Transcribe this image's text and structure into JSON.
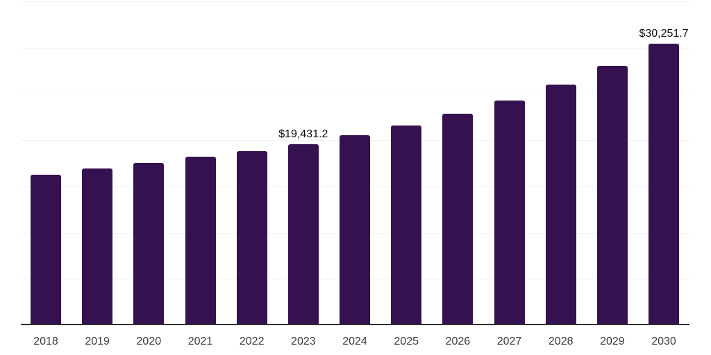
{
  "chart_data": {
    "type": "bar",
    "title": "",
    "xlabel": "",
    "ylabel": "",
    "categories": [
      "2018",
      "2019",
      "2020",
      "2021",
      "2022",
      "2023",
      "2024",
      "2025",
      "2026",
      "2027",
      "2028",
      "2029",
      "2030"
    ],
    "values": [
      16100,
      16790,
      17390,
      18060,
      18660,
      19431.2,
      20390,
      21470,
      22700,
      24140,
      25890,
      27880,
      30251.7
    ],
    "data_labels": [
      "",
      "",
      "",
      "",
      "",
      "$19,431.2",
      "",
      "",
      "",
      "",
      "",
      "",
      "$30,251.7"
    ],
    "ylim": [
      0,
      35000
    ],
    "gridline_step": 5000,
    "grid": true,
    "legend_position": "none",
    "colors": {
      "bar": "#361150",
      "gridline": "#f1f1f3",
      "axis_line": "#2e2e2e",
      "tick_label": "#3a3a3a",
      "data_label": "#0d0d0d",
      "background": "#ffffff"
    }
  }
}
